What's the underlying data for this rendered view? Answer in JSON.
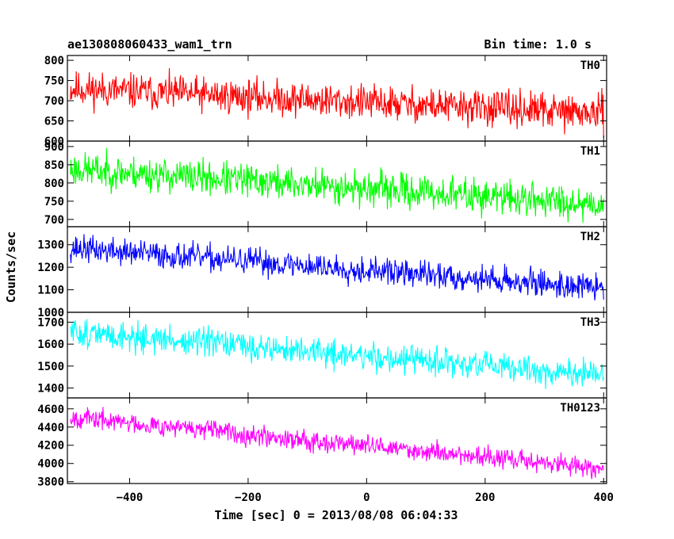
{
  "title_left": "ae130808060433_wam1_trn",
  "title_right": "Bin time: 1.0 s",
  "chart_data": {
    "type": "line",
    "xlabel": "Time [sec] 0 = 2013/08/08 06:04:33",
    "ylabel": "Counts/sec",
    "xlim": [
      -505,
      405
    ],
    "x_ticks": [
      -400,
      -200,
      0,
      200,
      400
    ],
    "x_step": 1,
    "x_range": [
      -500,
      400
    ],
    "panels": [
      {
        "name": "TH0",
        "color": "#ff0000",
        "ylim": [
          600,
          812
        ],
        "y_ticks": [
          600,
          650,
          700,
          750,
          800
        ],
        "trend_start": 730,
        "trend_end": 668,
        "noise": 28,
        "seed": 11
      },
      {
        "name": "TH1",
        "color": "#00ff00",
        "ylim": [
          680,
          915
        ],
        "y_ticks": [
          700,
          750,
          800,
          850,
          900
        ],
        "trend_start": 838,
        "trend_end": 742,
        "noise": 30,
        "seed": 23
      },
      {
        "name": "TH2",
        "color": "#0000ff",
        "ylim": [
          1000,
          1380
        ],
        "y_ticks": [
          1000,
          1100,
          1200,
          1300
        ],
        "trend_start": 1285,
        "trend_end": 1108,
        "noise": 38,
        "seed": 37
      },
      {
        "name": "TH3",
        "color": "#00ffff",
        "ylim": [
          1355,
          1745
        ],
        "y_ticks": [
          1400,
          1500,
          1600,
          1700
        ],
        "trend_start": 1655,
        "trend_end": 1455,
        "noise": 42,
        "seed": 51
      },
      {
        "name": "TH0123",
        "color": "#ff00ff",
        "ylim": [
          3780,
          4720
        ],
        "y_ticks": [
          3800,
          4000,
          4200,
          4400,
          4600
        ],
        "trend_start": 4510,
        "trend_end": 3945,
        "noise": 70,
        "seed": 67
      }
    ]
  }
}
